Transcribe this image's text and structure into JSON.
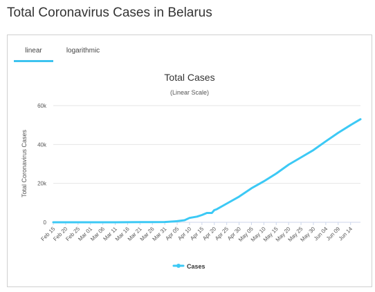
{
  "page": {
    "title": "Total Coronavirus Cases in Belarus"
  },
  "tabs": [
    {
      "label": "linear",
      "active": true
    },
    {
      "label": "logarithmic",
      "active": false
    }
  ],
  "colors": {
    "series": "#3cc9f5",
    "tab_active": "#3cc3ef",
    "grid": "#e6e6e6"
  },
  "chart_data": {
    "type": "line",
    "title": "Total Cases",
    "subtitle": "(Linear Scale)",
    "xlabel": "",
    "ylabel": "Total Coronavirus Cases",
    "ylim": [
      0,
      60000
    ],
    "yticks": [
      0,
      20000,
      40000,
      60000
    ],
    "ytick_labels": [
      "0",
      "20k",
      "40k",
      "60k"
    ],
    "grid": true,
    "legend": "bottom-center",
    "categories": [
      "Feb 15",
      "Feb 20",
      "Feb 25",
      "Mar 01",
      "Mar 06",
      "Mar 11",
      "Mar 16",
      "Mar 21",
      "Mar 26",
      "Mar 31",
      "Apr 05",
      "Apr 10",
      "Apr 15",
      "Apr 20",
      "Apr 25",
      "Apr 30",
      "May 05",
      "May 10",
      "May 15",
      "May 20",
      "May 25",
      "May 30",
      "Jun 04",
      "Jun 09",
      "Jun 14"
    ],
    "series": [
      {
        "name": "Cases",
        "x": [
          "Feb 15",
          "Feb 20",
          "Feb 25",
          "Mar 01",
          "Mar 06",
          "Mar 11",
          "Mar 16",
          "Mar 21",
          "Mar 26",
          "Mar 31",
          "Apr 05",
          "Apr 08",
          "Apr 10",
          "Apr 13",
          "Apr 15",
          "Apr 17",
          "Apr 18",
          "Apr 19",
          "Apr 20",
          "Apr 21",
          "Apr 25",
          "Apr 30",
          "May 05",
          "May 10",
          "May 15",
          "May 20",
          "May 25",
          "May 30",
          "Jun 04",
          "Jun 09",
          "Jun 14",
          "Jun 18"
        ],
        "values": [
          0,
          0,
          0,
          1,
          6,
          9,
          36,
          76,
          94,
          152,
          562,
          1066,
          2226,
          2919,
          3728,
          4779,
          4779,
          4779,
          6264,
          6723,
          9590,
          13181,
          17489,
          21101,
          25068,
          29650,
          33371,
          37144,
          41658,
          46000,
          50000,
          53000
        ]
      }
    ]
  }
}
